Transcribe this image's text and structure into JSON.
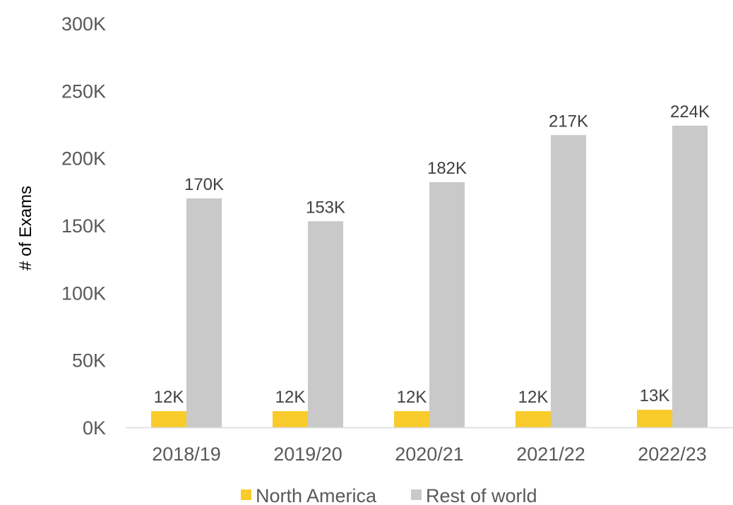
{
  "chart_data": {
    "type": "bar",
    "title": "",
    "xlabel": "",
    "ylabel": "# of Exams",
    "categories": [
      "2018/19",
      "2019/20",
      "2020/21",
      "2021/22",
      "2022/23"
    ],
    "ylim": [
      0,
      300000
    ],
    "yticks": [
      0,
      50000,
      100000,
      150000,
      200000,
      250000,
      300000
    ],
    "ytick_labels": [
      "0K",
      "50K",
      "100K",
      "150K",
      "200K",
      "250K",
      "300K"
    ],
    "grid": false,
    "legend_position": "bottom",
    "series": [
      {
        "name": "North America",
        "color": "#F9CB2B",
        "values": [
          12000,
          12000,
          12000,
          12000,
          13000
        ],
        "labels": [
          "12K",
          "12K",
          "12K",
          "12K",
          "13K"
        ]
      },
      {
        "name": "Rest of world",
        "color": "#C9C9C9",
        "values": [
          170000,
          153000,
          182000,
          217000,
          224000
        ],
        "labels": [
          "170K",
          "153K",
          "182K",
          "217K",
          "224K"
        ]
      }
    ]
  }
}
